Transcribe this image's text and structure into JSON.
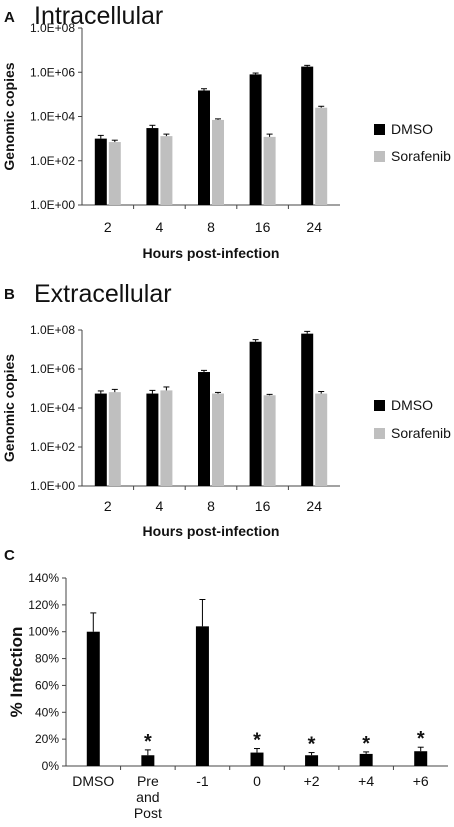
{
  "chart_data": [
    {
      "id": "A",
      "type": "bar",
      "panel_letter": "A",
      "title": "Intracellular",
      "xlabel": "Hours post-infection",
      "ylabel": "Genomic copies",
      "yscale": "log",
      "ylim": [
        1,
        100000000
      ],
      "yticks": [
        1,
        100,
        10000,
        1000000,
        100000000
      ],
      "ytick_labels": [
        "1.0E+00",
        "1.0E+02",
        "1.0E+04",
        "1.0E+06",
        "1.0E+08"
      ],
      "categories": [
        "2",
        "4",
        "8",
        "16",
        "24"
      ],
      "series": [
        {
          "name": "DMSO",
          "color": "#000000",
          "values": [
            1000,
            3000,
            150000,
            800000,
            1800000
          ],
          "errors": [
            400,
            1000,
            30000,
            120000,
            250000
          ]
        },
        {
          "name": "Sorafenib",
          "color": "#bfbfbf",
          "values": [
            700,
            1300,
            7000,
            1200,
            25000
          ],
          "errors": [
            150,
            300,
            800,
            400,
            4000
          ]
        }
      ],
      "legend": "right",
      "grid": false
    },
    {
      "id": "B",
      "type": "bar",
      "panel_letter": "B",
      "title": "Extracellular",
      "xlabel": "Hours post-infection",
      "ylabel": "Genomic copies",
      "yscale": "log",
      "ylim": [
        1,
        100000000
      ],
      "yticks": [
        1,
        100,
        10000,
        1000000,
        100000000
      ],
      "ytick_labels": [
        "1.0E+00",
        "1.0E+02",
        "1.0E+04",
        "1.0E+06",
        "1.0E+08"
      ],
      "categories": [
        "2",
        "4",
        "8",
        "16",
        "24"
      ],
      "series": [
        {
          "name": "DMSO",
          "color": "#000000",
          "values": [
            55000,
            55000,
            700000,
            25000000,
            65000000
          ],
          "errors": [
            20000,
            25000,
            150000,
            7000000,
            20000000
          ]
        },
        {
          "name": "Sorafenib",
          "color": "#bfbfbf",
          "values": [
            65000,
            80000,
            55000,
            45000,
            55000
          ],
          "errors": [
            25000,
            40000,
            8000,
            5000,
            15000
          ]
        }
      ],
      "legend": "right",
      "grid": false
    },
    {
      "id": "C",
      "type": "bar",
      "panel_letter": "C",
      "xlabel": "",
      "ylabel": "% Infection",
      "ylim": [
        0,
        140
      ],
      "yticks": [
        0,
        20,
        40,
        60,
        80,
        100,
        120,
        140
      ],
      "ytick_labels": [
        "0%",
        "20%",
        "40%",
        "60%",
        "80%",
        "100%",
        "120%",
        "140%"
      ],
      "categories": [
        [
          "DMSO"
        ],
        [
          "Pre",
          "and",
          "Post"
        ],
        [
          "-1"
        ],
        [
          "0"
        ],
        [
          "+2"
        ],
        [
          "+4"
        ],
        [
          "+6"
        ]
      ],
      "series": [
        {
          "color": "#000000",
          "values": [
            100,
            8,
            104,
            10,
            8,
            9,
            11
          ],
          "errors": [
            14,
            4,
            20,
            3,
            2,
            1.5,
            3
          ]
        }
      ],
      "significant": [
        false,
        true,
        false,
        true,
        true,
        true,
        true
      ],
      "significance_marker": "*",
      "grid": false
    }
  ]
}
